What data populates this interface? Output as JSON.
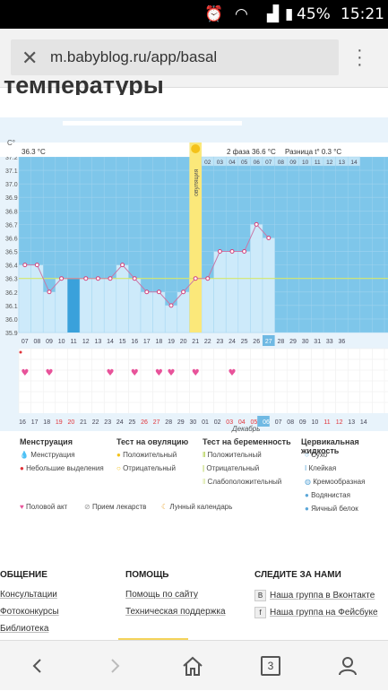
{
  "status": {
    "battery": "45%",
    "time": "15:21"
  },
  "browser": {
    "url": "m.babyblog.ru/app/basal",
    "tabs_count": "3"
  },
  "page": {
    "heading": "температуры"
  },
  "chart": {
    "unit_label": "C°",
    "coverline_label": "36.3 °C",
    "ovulation_label": "овуляция",
    "phase2_label": "2 фаза 36.6 °C",
    "diff_label": "Разница t° 0.3 °C",
    "month_label": "Декабрь",
    "y_ticks": [
      "37.2",
      "37.1",
      "37.0",
      "36.9",
      "36.8",
      "36.7",
      "36.6",
      "36.5",
      "36.4",
      "36.3",
      "36.2",
      "36.1",
      "36.0",
      "35.9"
    ],
    "top_dates": [
      "07",
      "08",
      "09",
      "10",
      "11",
      "12",
      "13",
      "14"
    ],
    "bottom_dates": [
      "07",
      "08",
      "09",
      "10",
      "11",
      "12",
      "13",
      "14",
      "15",
      "16",
      "17",
      "18",
      "19",
      "20",
      "21",
      "22",
      "23",
      "24",
      "25",
      "26",
      "27",
      "28",
      "29",
      "30",
      "31",
      "33",
      "36"
    ],
    "cycle_dates": [
      "16",
      "17",
      "18",
      "19",
      "20",
      "21",
      "22",
      "23",
      "24",
      "25",
      "26",
      "27",
      "28",
      "29",
      "30",
      "01",
      "02",
      "03",
      "04",
      "05",
      "06",
      "07",
      "08",
      "09",
      "10",
      "11",
      "12",
      "13",
      "14"
    ],
    "cycle_red": [
      "19",
      "20",
      "26",
      "27",
      "03",
      "04",
      "05",
      "11",
      "12"
    ]
  },
  "chart_data": {
    "type": "line",
    "x": [
      "07",
      "08",
      "09",
      "10",
      "11",
      "12",
      "13",
      "14",
      "15",
      "16",
      "17",
      "18",
      "19",
      "20",
      "21",
      "22",
      "23",
      "24",
      "25",
      "26",
      "27"
    ],
    "series": [
      {
        "values": [
          36.4,
          36.4,
          36.2,
          36.3,
          null,
          36.3,
          36.3,
          36.3,
          36.4,
          36.3,
          36.2,
          36.2,
          36.1,
          36.2,
          36.3,
          36.3,
          36.5,
          36.5,
          36.5,
          36.7,
          36.6
        ]
      }
    ],
    "ylim": [
      35.9,
      37.2
    ],
    "coverline": 36.3,
    "ovulation_day": "21",
    "intercourse_days": [
      "07",
      "09",
      "14",
      "16",
      "18",
      "19",
      "21",
      "24"
    ]
  },
  "legend": {
    "col1_title": "Менструация",
    "col1_items": [
      "Менструация",
      "Небольшие выделения"
    ],
    "col2_title": "Тест на овуляцию",
    "col2_items": [
      "Положительный",
      "Отрицательный"
    ],
    "col3_title": "Тест на беременность",
    "col3_items": [
      "Положительный",
      "Отрицательный",
      "Слабоположительный"
    ],
    "col4_title": "Цервикальная жидкость",
    "col4_items": [
      "Сухо",
      "Клейкая",
      "Кремообразная",
      "Водянистая",
      "Яичный белок"
    ],
    "extra": [
      "Половой акт",
      "Прием лекарств",
      "Лунный календарь"
    ]
  },
  "footer": {
    "col1_title": "ОБЩЕНИЕ",
    "col1_links": [
      "Консультации",
      "Фотоконкурсы",
      "Библиотека"
    ],
    "col2_title": "ПОМОЩЬ",
    "col2_links": [
      "Помощь по сайту",
      "Техническая поддержка"
    ],
    "col3_title": "СЛЕДИТЕ ЗА НАМИ",
    "col3_links": [
      "Наша группа в Вконтакте",
      "Наша группа на Фейсбуке"
    ]
  }
}
